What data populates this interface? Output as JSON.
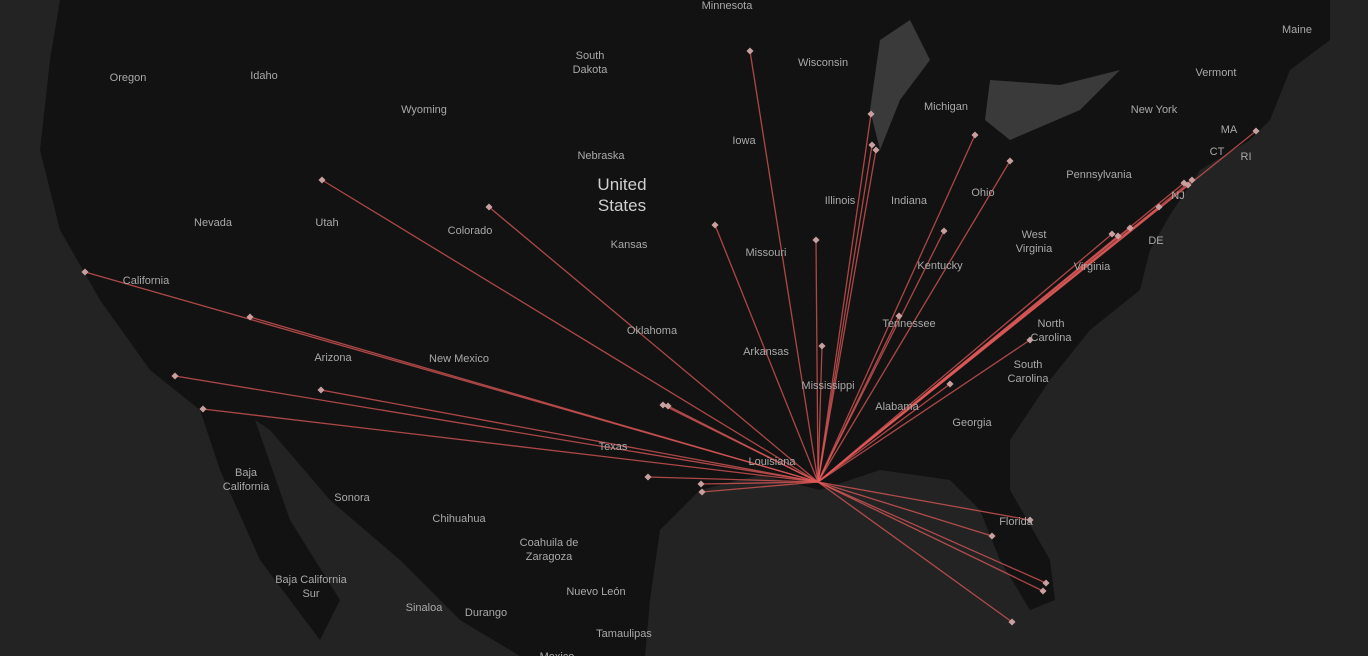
{
  "map": {
    "labels": [
      [
        "Minnesota"
      ],
      [
        "South",
        "Dakota"
      ],
      [
        "Oregon"
      ],
      [
        "Idaho"
      ],
      [
        "Wyoming"
      ],
      [
        "Wisconsin"
      ],
      [
        "Michigan"
      ],
      [
        "Maine"
      ],
      [
        "Vermont"
      ],
      [
        "New York"
      ],
      [
        "MA"
      ],
      [
        "CT"
      ],
      [
        "RI"
      ],
      [
        "NJ"
      ],
      [
        "DE"
      ],
      [
        "Nebraska"
      ],
      [
        "Iowa"
      ],
      [
        "United",
        "States"
      ],
      [
        "Illinois"
      ],
      [
        "Indiana"
      ],
      [
        "Ohio"
      ],
      [
        "Pennsylvania"
      ],
      [
        "Nevada"
      ],
      [
        "Utah"
      ],
      [
        "Colorado"
      ],
      [
        "Kansas"
      ],
      [
        "Missouri"
      ],
      [
        "West",
        "Virginia"
      ],
      [
        "Virginia"
      ],
      [
        "Kentucky"
      ],
      [
        "California"
      ],
      [
        "Tennessee"
      ],
      [
        "North",
        "Carolina"
      ],
      [
        "Oklahoma"
      ],
      [
        "Arkansas"
      ],
      [
        "Arizona"
      ],
      [
        "New Mexico"
      ],
      [
        "South",
        "Carolina"
      ],
      [
        "Mississippi"
      ],
      [
        "Alabama"
      ],
      [
        "Georgia"
      ],
      [
        "Texas"
      ],
      [
        "Louisiana"
      ],
      [
        "Baja",
        "California"
      ],
      [
        "Sonora"
      ],
      [
        "Chihuahua"
      ],
      [
        "Florida"
      ],
      [
        "Coahuila de",
        "Zaragoza"
      ],
      [
        "Baja California",
        "Sur"
      ],
      [
        "Nuevo León"
      ],
      [
        "Sinaloa"
      ],
      [
        "Durango"
      ],
      [
        "Tamaulipas"
      ],
      [
        "Mexico"
      ]
    ]
  }
}
